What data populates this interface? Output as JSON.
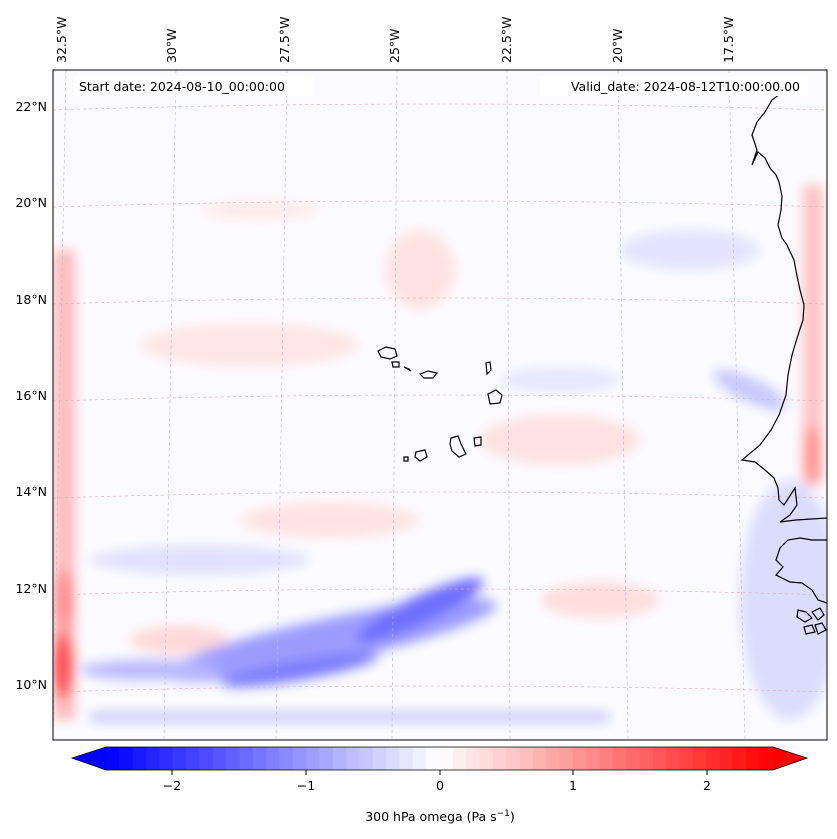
{
  "map": {
    "start_date": "Start date: 2024-08-10_00:00:00",
    "valid_date": "Valid_date: 2024-08-12T10:00:00.00",
    "lon_labels": [
      "32.5°W",
      "30°W",
      "27.5°W",
      "25°W",
      "22.5°W",
      "20°W",
      "17.5°W"
    ],
    "lat_labels": [
      "22°N",
      "20°N",
      "18°N",
      "16°N",
      "14°N",
      "12°N",
      "10°N"
    ]
  },
  "colorbar": {
    "label_prefix": "300 hPa omega (Pa s",
    "label_exp": "−1",
    "label_suffix": ")",
    "ticks": [
      "−2",
      "−1",
      "0",
      "1",
      "2"
    ],
    "vmin": -2.75,
    "vmax": 2.75,
    "neg_color": "#0000ff",
    "pos_color": "#ff0000"
  }
}
